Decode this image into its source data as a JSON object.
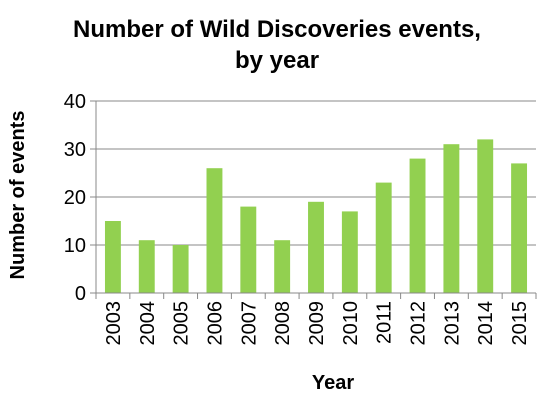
{
  "chart_data": {
    "type": "bar",
    "title_lines": [
      "Number of Wild Discoveries events,",
      "by year"
    ],
    "xlabel": "Year",
    "ylabel": "Number of events",
    "categories": [
      "2003",
      "2004",
      "2005",
      "2006",
      "2007",
      "2008",
      "2009",
      "2010",
      "2011",
      "2012",
      "2013",
      "2014",
      "2015"
    ],
    "values": [
      15,
      11,
      10,
      26,
      18,
      11,
      19,
      17,
      23,
      28,
      31,
      32,
      27
    ],
    "ylim": [
      0,
      40
    ],
    "yticks": [
      0,
      10,
      20,
      30,
      40
    ],
    "grid": true,
    "legend": "none",
    "bar_color": "#92d050",
    "grid_color": "#888888",
    "axis_color": "#888888"
  }
}
